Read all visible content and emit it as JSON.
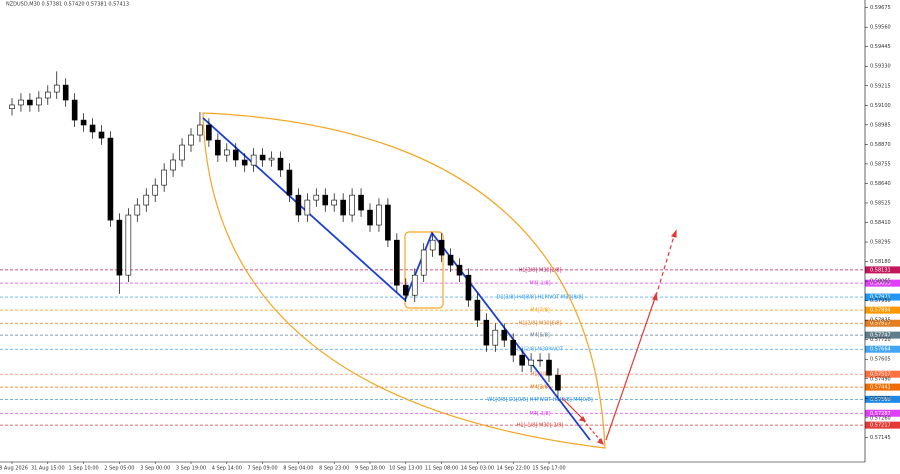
{
  "header": "NZDUSD,M30  0.57381 0.57420 0.57381 0.57413",
  "chart_data": {
    "type": "candlestick",
    "categories": [
      "28 Aug 2026",
      null,
      null,
      null,
      "31 Aug 15:00",
      null,
      null,
      null,
      "1 Sep 10:00",
      null,
      null,
      null,
      "2 Sep 05:00",
      null,
      null,
      null,
      "3 Sep 00:00",
      null,
      null,
      null,
      "3 Sep 19:00",
      null,
      null,
      null,
      "4 Sep 14:00",
      null,
      null,
      null,
      "7 Sep 09:00",
      null,
      null,
      null,
      "8 Sep 04:00",
      null,
      null,
      null,
      "8 Sep 23:00",
      null,
      null,
      null,
      "9 Sep 18:00",
      null,
      null,
      null,
      "10 Sep 13:00",
      null,
      null,
      null,
      "11 Sep 08:00",
      null,
      null,
      null,
      "14 Sep 03:00",
      null,
      null,
      null,
      "14 Sep 22:00",
      null,
      null,
      null,
      "15 Sep 17:00",
      null
    ],
    "open": [
      0.5908,
      0.59102,
      0.59131,
      0.59102,
      0.59143,
      0.59178,
      0.59219,
      0.59131,
      0.59013,
      0.58984,
      0.58943,
      0.58907,
      0.58424,
      0.581,
      0.58454,
      0.58513,
      0.58571,
      0.5863,
      0.58719,
      0.58778,
      0.58866,
      0.58925,
      0.58984,
      0.58895,
      0.58807,
      0.58837,
      0.58778,
      0.58748,
      0.58807,
      0.58778,
      0.58789,
      0.58719,
      0.58571,
      0.58454,
      0.58542,
      0.58571,
      0.58513,
      0.58542,
      0.58454,
      0.58571,
      0.58483,
      0.58395,
      0.58513,
      0.58306,
      0.58041,
      0.57982,
      0.581,
      0.58248,
      0.58306,
      0.58218,
      0.58159,
      0.581,
      0.57953,
      0.57835,
      0.57688,
      0.57776,
      0.57717,
      0.57629,
      0.5757,
      0.576,
      0.576,
      0.57511
    ],
    "high": [
      0.59142,
      0.59171,
      0.59171,
      0.59183,
      0.59218,
      0.593,
      0.59259,
      0.59171,
      0.59053,
      0.59024,
      0.58983,
      0.58947,
      0.58464,
      0.58494,
      0.58553,
      0.58611,
      0.5867,
      0.58759,
      0.58818,
      0.58906,
      0.58965,
      0.5906,
      0.59024,
      0.58935,
      0.58877,
      0.58877,
      0.58818,
      0.58847,
      0.58847,
      0.58829,
      0.58829,
      0.58759,
      0.58611,
      0.58582,
      0.58611,
      0.58611,
      0.58582,
      0.58582,
      0.58611,
      0.58611,
      0.58523,
      0.58553,
      0.58553,
      0.58346,
      0.58081,
      0.5814,
      0.58288,
      0.58346,
      0.58346,
      0.58258,
      0.58199,
      0.5814,
      0.57993,
      0.57875,
      0.57816,
      0.57816,
      0.57757,
      0.57669,
      0.5764,
      0.5764,
      0.5764,
      0.57551
    ],
    "low": [
      0.5904,
      0.59062,
      0.59062,
      0.59062,
      0.59103,
      0.59138,
      0.59091,
      0.58973,
      0.58944,
      0.58903,
      0.58867,
      0.58384,
      0.5799,
      0.5806,
      0.58414,
      0.58473,
      0.58531,
      0.5859,
      0.58679,
      0.58738,
      0.58826,
      0.58885,
      0.58855,
      0.58767,
      0.58767,
      0.58738,
      0.58708,
      0.58708,
      0.58738,
      0.58738,
      0.58679,
      0.58531,
      0.58414,
      0.58414,
      0.58502,
      0.58473,
      0.58473,
      0.58414,
      0.58414,
      0.58443,
      0.58355,
      0.58355,
      0.58266,
      0.58001,
      0.57942,
      0.57942,
      0.5806,
      0.58208,
      0.58178,
      0.58119,
      0.5806,
      0.57913,
      0.57795,
      0.57648,
      0.57648,
      0.57677,
      0.57589,
      0.5753,
      0.5753,
      0.5756,
      0.57471,
      0.57383
    ],
    "close": [
      0.59102,
      0.59131,
      0.59102,
      0.59143,
      0.59178,
      0.59219,
      0.59131,
      0.59013,
      0.58984,
      0.58943,
      0.58907,
      0.58424,
      0.581,
      0.58454,
      0.58513,
      0.58571,
      0.5863,
      0.58719,
      0.58778,
      0.58866,
      0.58925,
      0.58984,
      0.58895,
      0.58807,
      0.58837,
      0.58778,
      0.58748,
      0.58807,
      0.58778,
      0.58789,
      0.58719,
      0.58571,
      0.58454,
      0.58542,
      0.58571,
      0.58513,
      0.58542,
      0.58454,
      0.58571,
      0.58483,
      0.58395,
      0.58513,
      0.58306,
      0.58041,
      0.57982,
      0.581,
      0.58248,
      0.58306,
      0.58218,
      0.58159,
      0.581,
      0.57953,
      0.57835,
      0.57688,
      0.57776,
      0.57717,
      0.57629,
      0.5757,
      0.576,
      0.576,
      0.57511,
      0.57423
    ],
    "ylim": [
      0.57,
      0.5972
    ],
    "yticks": [
      0.59675,
      {
        "value": 0.5956,
        "label": "0.59560"
      },
      0.59445,
      {
        "value": 0.5933,
        "label": "0.59330"
      },
      0.59215,
      {
        "value": 0.591,
        "label": "0.59100"
      },
      0.58985,
      {
        "value": 0.5887,
        "label": "0.58870"
      },
      0.58755,
      {
        "value": 0.5864,
        "label": "0.58640"
      },
      0.58525,
      {
        "value": 0.5841,
        "label": "0.58410"
      },
      0.58295,
      {
        "value": 0.5818,
        "label": "0.58180"
      },
      0.58065,
      {
        "value": 0.5795,
        "label": "0.57950"
      },
      0.57835,
      {
        "value": 0.5772,
        "label": "0.57720"
      },
      0.57605,
      {
        "value": 0.5749,
        "label": "0.57490"
      },
      0.57375,
      {
        "value": 0.5726,
        "label": "0.57260"
      },
      0.57145
    ],
    "levels": [
      {
        "label": "H1[3/8] M30[2/8]",
        "price": 0.58131,
        "color": "#c2185b"
      },
      {
        "label": "M4[-1/8]",
        "price": 0.58053,
        "color": "#e040fb"
      },
      {
        "label": "D1[3/8] H4[8/8] H1PIVOT M30[8/8]",
        "price": 0.57971,
        "color": "#2196f3"
      },
      {
        "label": "M4[7/8]",
        "price": 0.57894,
        "color": "#ff9800"
      },
      {
        "label": "H1[2/8] M30[6/8]",
        "price": 0.57817,
        "color": "#e67e22"
      },
      {
        "label": "M4[5/8]",
        "price": 0.57747,
        "color": "#607d8b"
      },
      {
        "label": "D1[2/8] M30PIVOT",
        "price": 0.57664,
        "color": "#42a5f5"
      },
      {
        "label": "H1[1/8]",
        "price": 0.57517,
        "color": "#ff7043"
      },
      {
        "label": "M4[3/8]",
        "price": 0.57441,
        "color": "#ef6c00"
      },
      {
        "label": "W1[0/8] D1[0/8] H4PIVOT H1[0/8] M4[0/8]",
        "price": 0.57369,
        "color": "#1e88e5"
      },
      {
        "label": "M4[-1/8]",
        "price": 0.57287,
        "color": "#e040fb"
      },
      {
        "label": "H1[-1/8] M30[-2/8]",
        "price": 0.57217,
        "color": "#e53935"
      }
    ]
  }
}
